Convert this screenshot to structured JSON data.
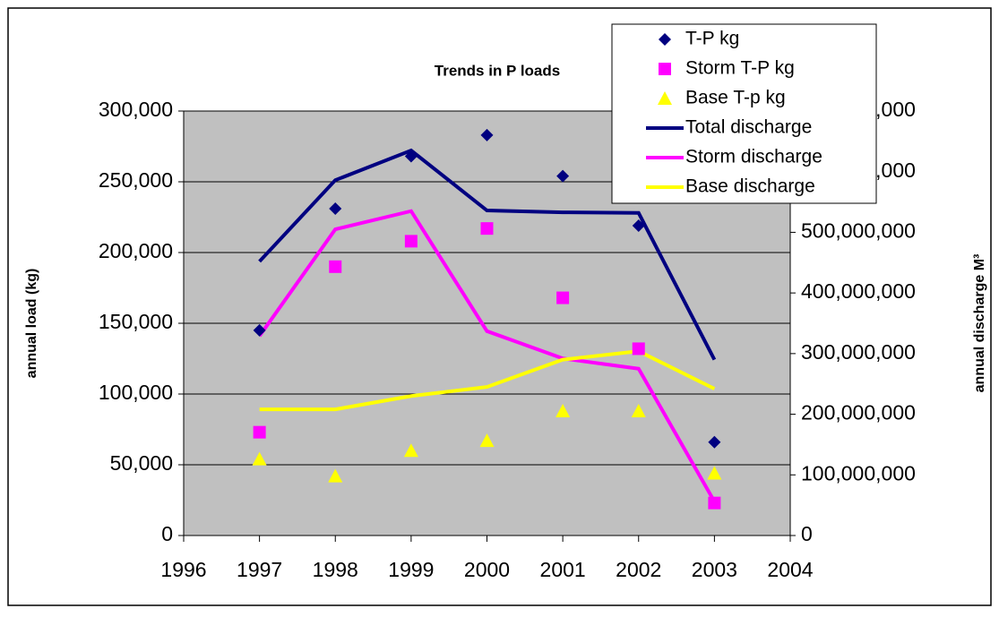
{
  "chart_data": {
    "type": "combo",
    "title": "Trends in P loads",
    "ylabel": "annual load (kg)",
    "y2label": "annual discharge M³",
    "x": [
      1997,
      1998,
      1999,
      2000,
      2001,
      2002,
      2003
    ],
    "xlim": [
      1996,
      2004
    ],
    "xticks": [
      1996,
      1997,
      1998,
      1999,
      2000,
      2001,
      2002,
      2003,
      2004
    ],
    "ylim": [
      0,
      300000
    ],
    "yticks": [
      0,
      {
        "value": 50000,
        "label": "50,000"
      },
      {
        "value": 100000,
        "label": "100,000"
      },
      {
        "value": 150000,
        "label": "150,000"
      },
      {
        "value": 200000,
        "label": "200,000"
      },
      {
        "value": 250000,
        "label": "250,000"
      },
      {
        "value": 300000,
        "label": "300,000"
      }
    ],
    "y2lim": [
      0,
      700000000
    ],
    "y2ticks": [
      0,
      {
        "value": 100000000,
        "label": "100,000,000"
      },
      {
        "value": 200000000,
        "label": "200,000,000"
      },
      {
        "value": 300000000,
        "label": "300,000,000"
      },
      {
        "value": 400000000,
        "label": "400,000,000"
      },
      {
        "value": 500000000,
        "label": "500,000,000"
      },
      {
        "value": 600000000,
        "label": "600,000,000"
      },
      {
        "value": 700000000,
        "label": "700,000,000"
      }
    ],
    "grid": true,
    "plot_background": "#c0c0c0",
    "legend": "top-right",
    "series": [
      {
        "name": "T-P kg",
        "color": "#000080",
        "style": "marker",
        "marker": "diamond",
        "values": [
          145000,
          231000,
          268000,
          283000,
          254000,
          219000,
          66000
        ]
      },
      {
        "name": "Storm T-P kg",
        "color": "#ff00ff",
        "style": "marker",
        "marker": "square",
        "values": [
          73000,
          190000,
          208000,
          217000,
          168000,
          132000,
          23000
        ]
      },
      {
        "name": "Base T-p kg",
        "color": "#ffff00",
        "style": "marker",
        "marker": "triangle",
        "values": [
          54000,
          42000,
          60000,
          67000,
          88000,
          88000,
          44000
        ]
      },
      {
        "name": "Total discharge",
        "color": "#000080",
        "style": "line",
        "axis": "y2",
        "values": [
          452000000,
          586000000,
          635000000,
          536000000,
          533000000,
          532000000,
          290000000
        ]
      },
      {
        "name": "Storm discharge",
        "color": "#ff00ff",
        "style": "line",
        "axis": "y2",
        "values": [
          329000000,
          505000000,
          535000000,
          337000000,
          292000000,
          275000000,
          56000000
        ]
      },
      {
        "name": "Base discharge",
        "color": "#ffff00",
        "style": "line",
        "axis": "y2",
        "values": [
          208000000,
          208000000,
          230000000,
          245000000,
          290000000,
          304000000,
          242000000
        ]
      }
    ]
  }
}
